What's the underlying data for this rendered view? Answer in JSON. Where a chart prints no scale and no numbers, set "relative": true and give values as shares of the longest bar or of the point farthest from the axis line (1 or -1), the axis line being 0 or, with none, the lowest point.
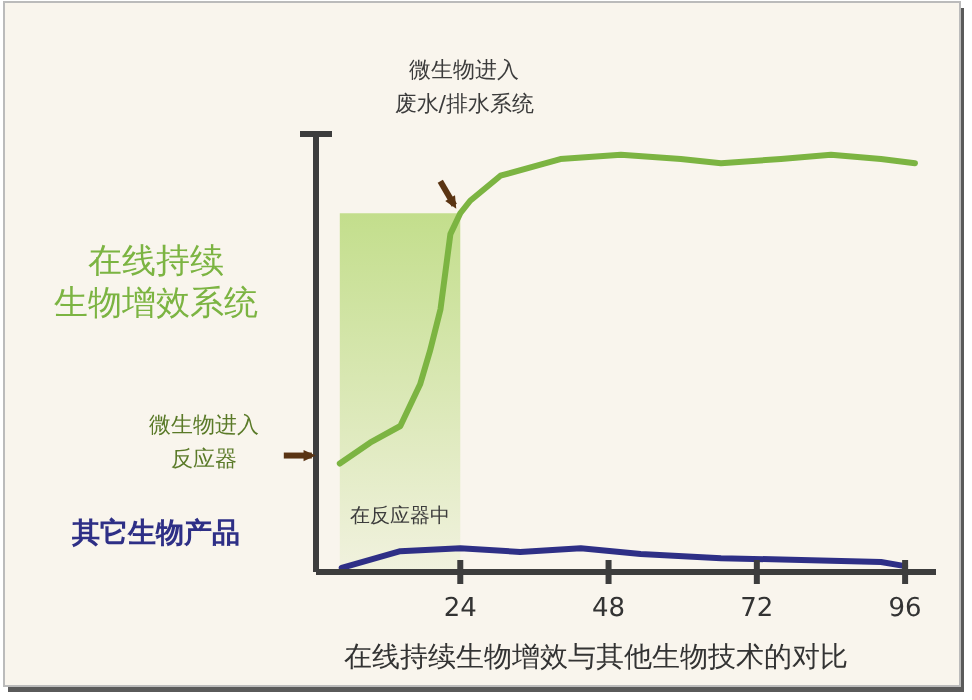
{
  "chart_data": {
    "type": "line",
    "relative": true,
    "xlabel": "在线持续生物增效与其他生物技术的对比",
    "xlim": [
      0,
      101
    ],
    "xticks": [
      24,
      48,
      72,
      96
    ],
    "line_style": "solid",
    "series": [
      {
        "name": "在线持续生物增效系统",
        "color": "#7cb442",
        "x": [
          4.5,
          9.4,
          14.3,
          17.5,
          19.1,
          20.8,
          22.4,
          24,
          25.6,
          30.5,
          40.2,
          50,
          59.7,
          66.2,
          75.9,
          84,
          92.1,
          97.6
        ],
        "values": [
          0.26,
          0.31,
          0.35,
          0.45,
          0.53,
          0.63,
          0.81,
          0.86,
          0.89,
          0.95,
          0.99,
          1,
          0.99,
          0.98,
          0.99,
          1,
          0.99,
          0.98
        ]
      },
      {
        "name": "其它生物产品",
        "color": "#2e2f86",
        "x": [
          4.8,
          14.3,
          24,
          33.7,
          43.5,
          53.2,
          66.2,
          79.2,
          92.1,
          96
        ],
        "values": [
          0.01,
          0.05,
          0.057,
          0.048,
          0.057,
          0.043,
          0.033,
          0.029,
          0.024,
          0.014
        ]
      }
    ],
    "bands": [
      {
        "axis": "x",
        "from": 4.5,
        "to": 24,
        "label": "在反应器中",
        "color": "#c3de8c"
      }
    ],
    "annotations": [
      "微生物进入废水/排水系统",
      "微生物进入反应器"
    ]
  }
}
